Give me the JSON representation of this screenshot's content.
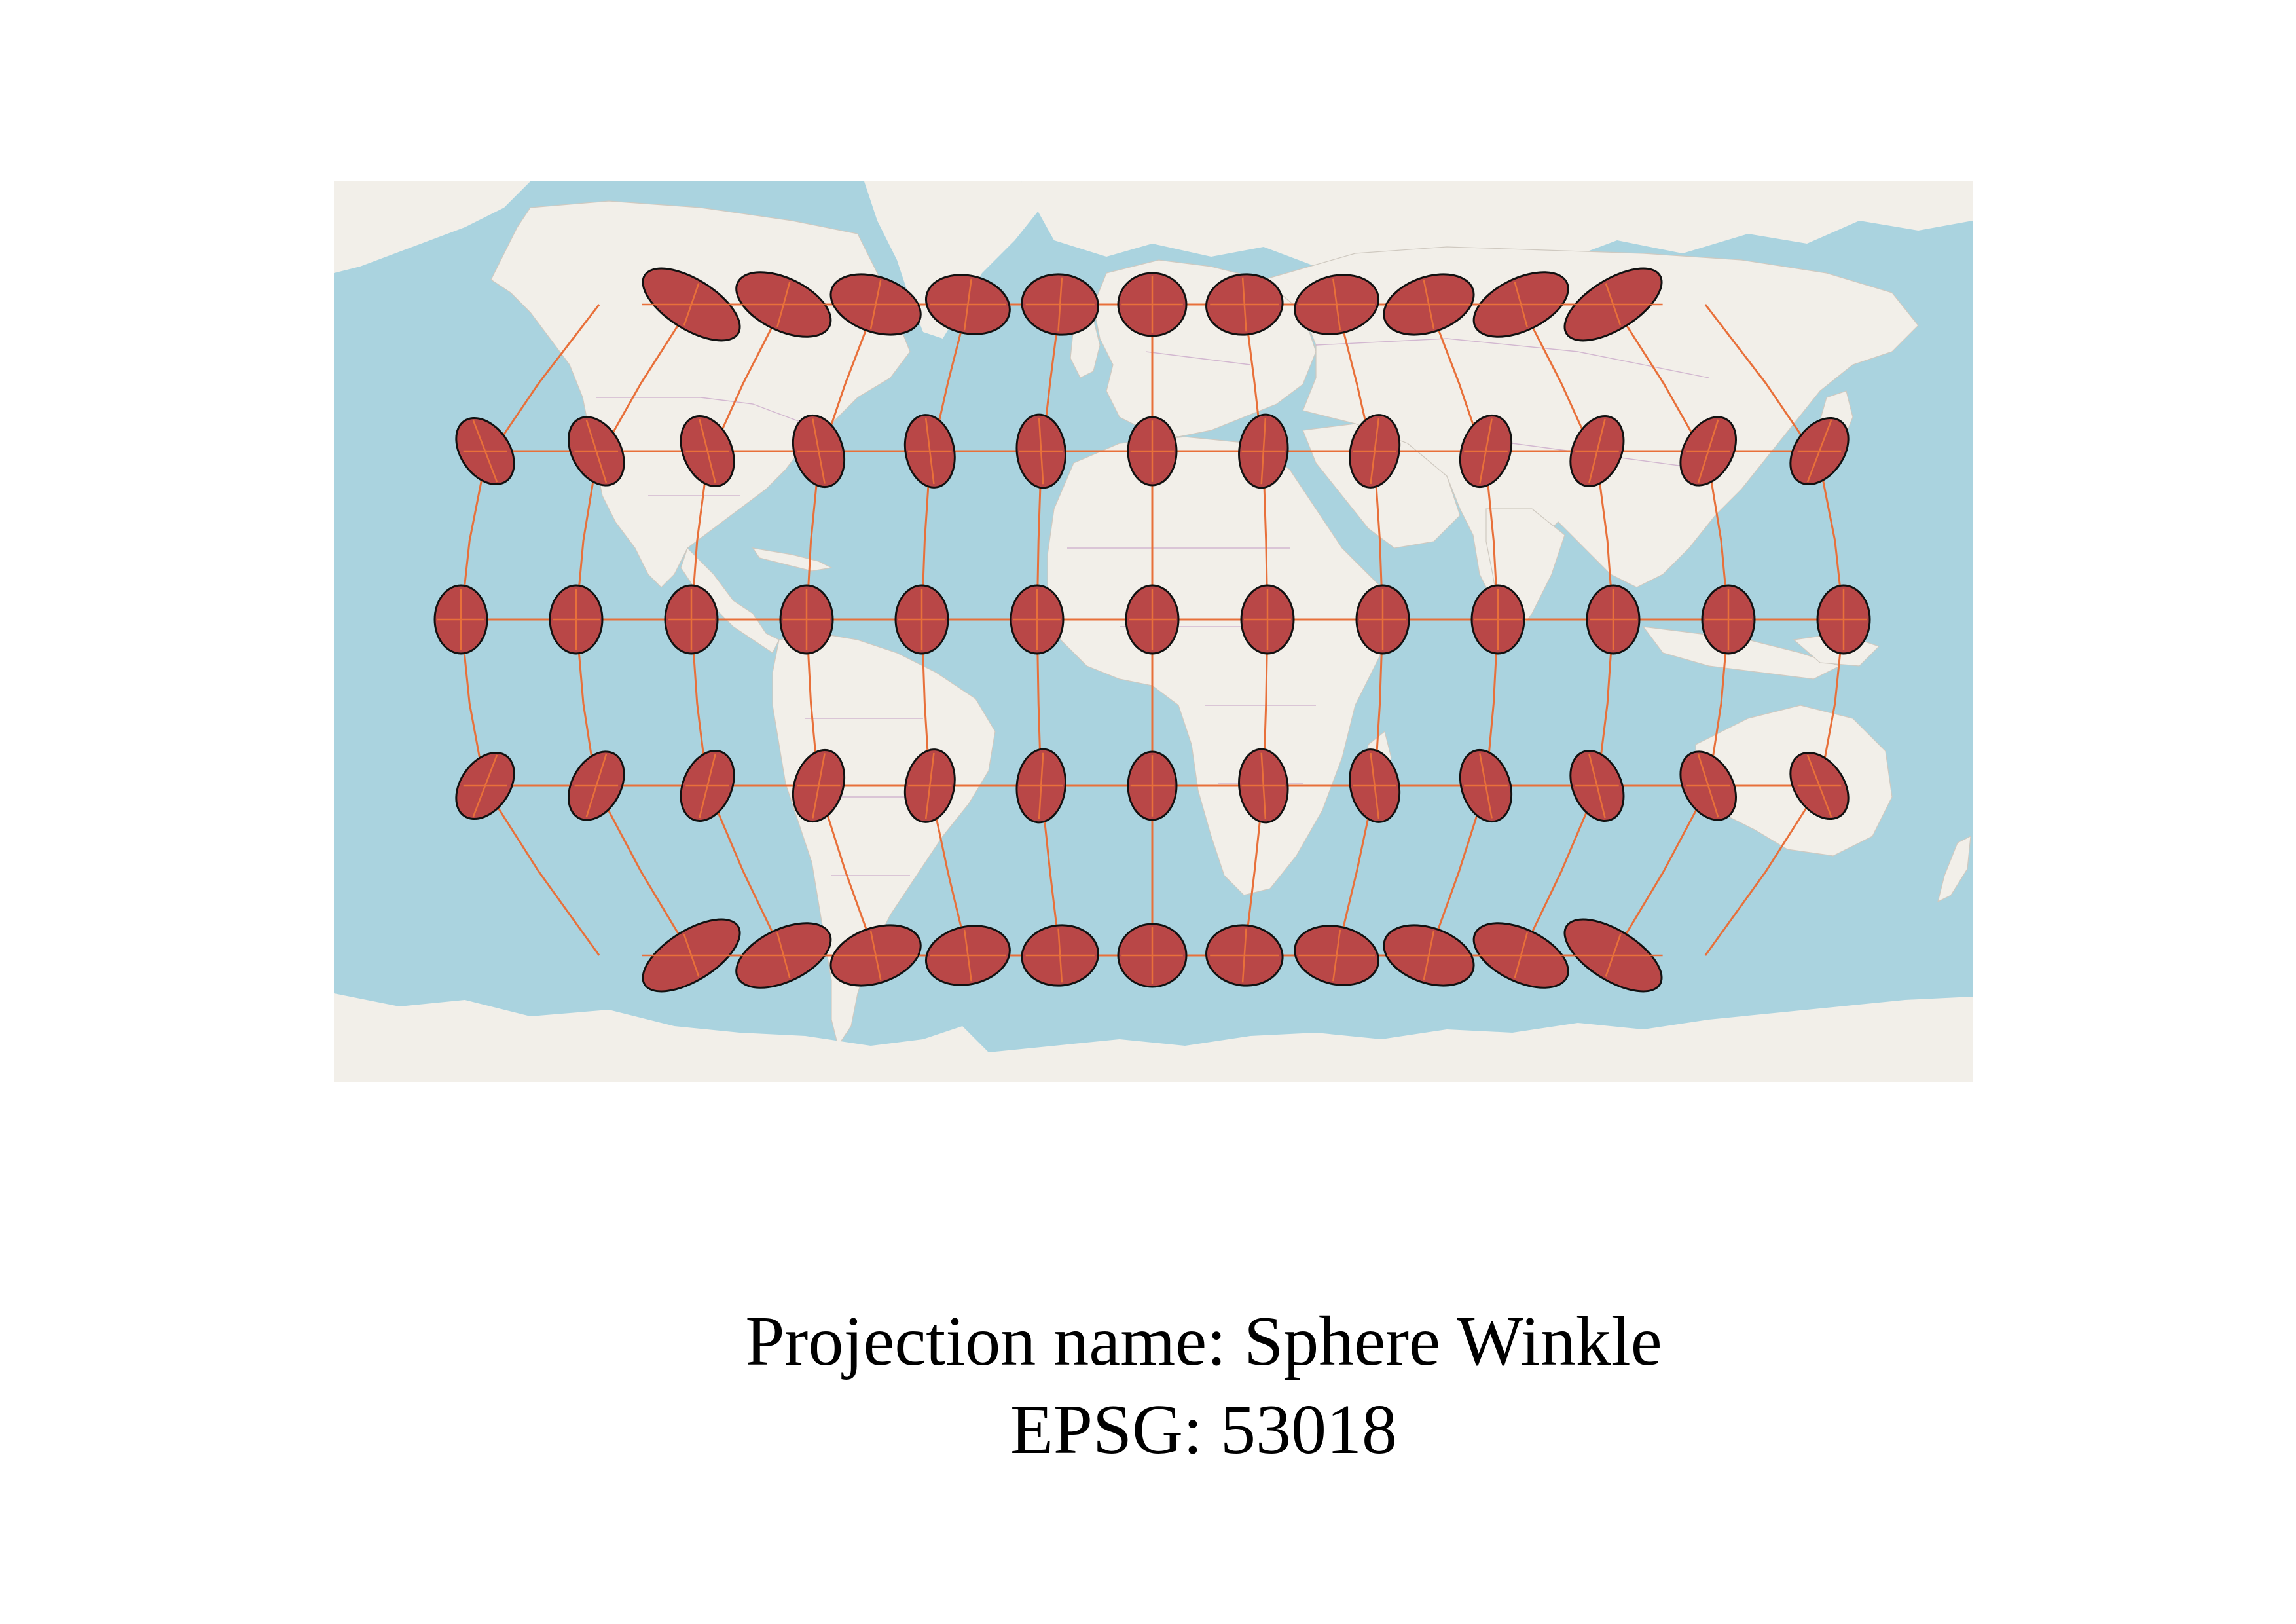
{
  "caption": {
    "projection_name": "Projection name: Sphere Winkle",
    "epsg": "EPSG: 53018"
  },
  "map": {
    "basemap": "world street map (OpenStreetMap style)",
    "colors": {
      "ocean": "#aad3df",
      "land": "#f2efe9",
      "graticule": "#e8703a",
      "indicatrix_fill": "#b94747",
      "indicatrix_stroke": "#111111"
    },
    "graticule": {
      "meridians_deg": [
        -150,
        -120,
        -90,
        -60,
        -30,
        0,
        30,
        60,
        90,
        120,
        150
      ],
      "parallels_deg": [
        60,
        30,
        0,
        -30,
        -60
      ]
    },
    "indicatrix_rows": [
      {
        "lat": 60,
        "lons": [
          -150,
          -120,
          -90,
          -60,
          -30,
          0,
          30,
          60,
          90,
          120,
          150
        ]
      },
      {
        "lat": 30,
        "lons": [
          -180,
          -150,
          -120,
          -90,
          -60,
          -30,
          0,
          30,
          60,
          90,
          120,
          150,
          180
        ]
      },
      {
        "lat": 0,
        "lons": [
          -180,
          -150,
          -120,
          -90,
          -60,
          -30,
          0,
          30,
          60,
          90,
          120,
          150,
          180
        ]
      },
      {
        "lat": -30,
        "lons": [
          -180,
          -150,
          -120,
          -90,
          -60,
          -30,
          0,
          30,
          60,
          90,
          120,
          150,
          180
        ]
      },
      {
        "lat": -60,
        "lons": [
          -150,
          -120,
          -90,
          -60,
          -30,
          0,
          30,
          60,
          90,
          120,
          150
        ]
      }
    ]
  }
}
